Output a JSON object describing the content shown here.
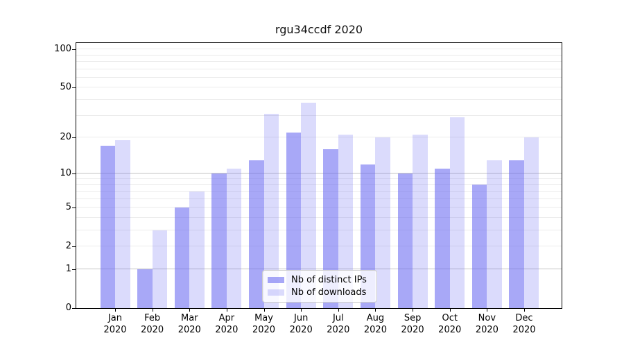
{
  "chart_data": {
    "type": "bar",
    "title": "rgu34ccdf 2020",
    "y_scale": "log10(1+y)",
    "grid": true,
    "legend_position": "lower center",
    "categories": [
      "Jan 2020",
      "Feb 2020",
      "Mar 2020",
      "Apr 2020",
      "May 2020",
      "Jun 2020",
      "Jul 2020",
      "Aug 2020",
      "Sep 2020",
      "Oct 2020",
      "Nov 2020",
      "Dec 2020"
    ],
    "x_tick_line1": [
      "Jan",
      "Feb",
      "Mar",
      "Apr",
      "May",
      "Jun",
      "Jul",
      "Aug",
      "Sep",
      "Oct",
      "Nov",
      "Dec"
    ],
    "x_tick_line2": "2020",
    "series": [
      {
        "name": "Nb of distinct IPs",
        "color": "#a8a8f6",
        "fill": "rgba(100,100,240,0.56)",
        "values": [
          17,
          1,
          5,
          10,
          13,
          22,
          16,
          12,
          10,
          11,
          8,
          13
        ]
      },
      {
        "name": "Nb of downloads",
        "color": "#dbdbfb",
        "fill": "rgba(100,100,240,0.23)",
        "values": [
          19,
          3,
          7,
          11,
          31,
          38,
          21,
          20,
          21,
          29,
          13,
          20
        ]
      }
    ],
    "yticks": [
      0,
      1,
      2,
      5,
      10,
      20,
      50,
      100
    ],
    "major_gridlines": [
      1,
      10
    ],
    "minor_gridlines": [
      2,
      3,
      4,
      5,
      6,
      7,
      8,
      9,
      20,
      30,
      40,
      50,
      60,
      70,
      80,
      90,
      100
    ],
    "ylim": [
      0,
      112
    ],
    "axis_color": "#000000",
    "major_grid_color": "#c3c3c3",
    "minor_grid_color": "#ebebeb"
  }
}
